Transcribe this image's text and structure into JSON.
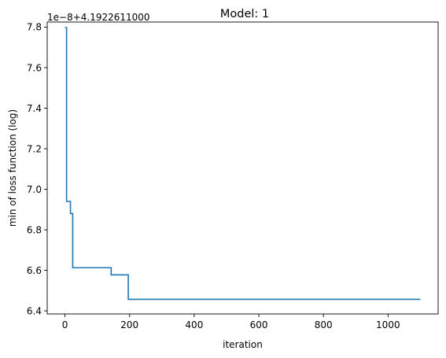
{
  "chart_data": {
    "type": "line",
    "title": "Model: 1",
    "xlabel": "iteration",
    "ylabel": "min of loss function (log)",
    "y_offset_label": "1e−8+4.1922611000",
    "xlim": [
      -55,
      1155
    ],
    "ylim": [
      6.385,
      7.825
    ],
    "x_ticks": [
      0,
      200,
      400,
      600,
      800,
      1000
    ],
    "y_ticks": [
      6.4,
      6.6,
      6.8,
      7.0,
      7.2,
      7.4,
      7.6,
      7.8
    ],
    "y_tick_labels": [
      "6.4",
      "6.6",
      "6.8",
      "7.0",
      "7.2",
      "7.4",
      "7.6",
      "7.8"
    ],
    "grid": false,
    "series": [
      {
        "color": "#1f77b4",
        "step": "post",
        "points": [
          [
            0,
            7.797
          ],
          [
            5,
            7.797
          ],
          [
            5,
            6.94
          ],
          [
            17,
            6.94
          ],
          [
            17,
            6.88
          ],
          [
            24,
            6.88
          ],
          [
            24,
            6.613
          ],
          [
            143,
            6.613
          ],
          [
            143,
            6.578
          ],
          [
            196,
            6.578
          ],
          [
            196,
            6.457
          ],
          [
            1100,
            6.457
          ]
        ]
      }
    ]
  }
}
